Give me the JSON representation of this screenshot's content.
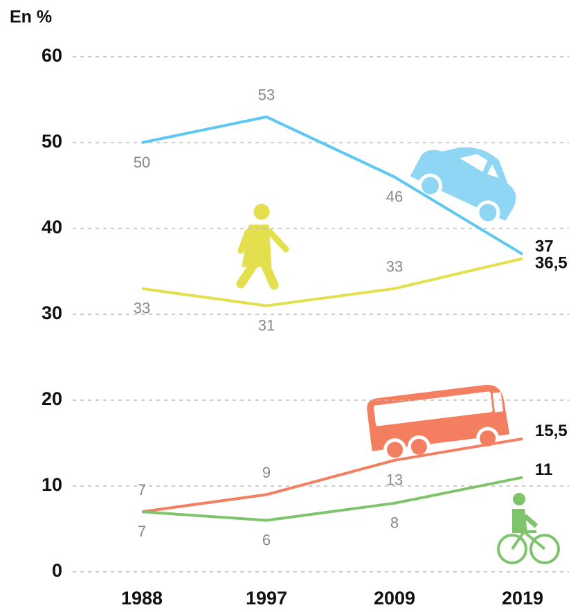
{
  "chart_data": {
    "type": "line",
    "y_label": "En %",
    "categories": [
      "1988",
      "1997",
      "2009",
      "2019"
    ],
    "series": [
      {
        "color": "#5cc8f2",
        "values": [
          50,
          53,
          46,
          37
        ],
        "value_labels": [
          "50",
          "53",
          "46",
          "37"
        ]
      },
      {
        "color": "#e4df4c",
        "values": [
          33,
          31,
          33,
          36.5
        ],
        "value_labels": [
          "33",
          "31",
          "33",
          "36,5"
        ]
      },
      {
        "color": "#f47e60",
        "values": [
          7,
          9,
          13,
          15.5
        ],
        "value_labels": [
          "7",
          "9",
          "13",
          "15,5"
        ]
      },
      {
        "color": "#7dc46b",
        "values": [
          7,
          6,
          8,
          11
        ],
        "value_labels": [
          "7",
          "6",
          "8",
          "11"
        ]
      }
    ],
    "ylim": [
      0,
      60
    ],
    "yticks": [
      0,
      10,
      20,
      30,
      40,
      50,
      60
    ],
    "grid": true
  }
}
